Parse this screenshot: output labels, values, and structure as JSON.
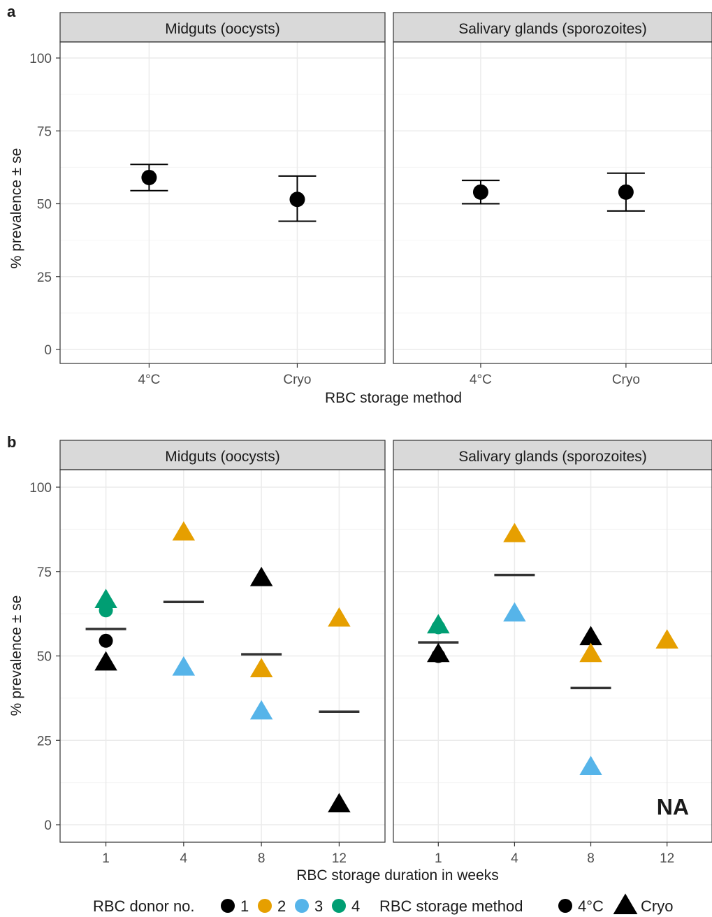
{
  "figure": {
    "panel_a_label": "a",
    "panel_b_label": "b"
  },
  "colors": {
    "donor_1": "#000000",
    "donor_2": "#E69F00",
    "donor_3": "#56B4E9",
    "donor_4": "#009E73",
    "strip_fill": "#D9D9D9",
    "grid_major": "#EBEBEB",
    "grid_minor": "#F5F5F5",
    "mean_bar": "#333333"
  },
  "chart_data": [
    {
      "id": "a",
      "type": "scatter",
      "panels": [
        "Midguts (oocysts)",
        "Salivary glands (sporozoites)"
      ],
      "categories": [
        "4°C",
        "Cryo"
      ],
      "xlabel": "RBC storage method",
      "ylabel": "% prevalence ± se",
      "ylim": [
        -5,
        105
      ],
      "yticks": [
        "0",
        "25",
        "50",
        "75",
        "100"
      ],
      "ytick_values": [
        0,
        25,
        50,
        75,
        100
      ],
      "grid": true,
      "series": [
        {
          "panel": "Midguts (oocysts)",
          "category": "4°C",
          "value": 59,
          "lower": 54.5,
          "upper": 63.5
        },
        {
          "panel": "Midguts (oocysts)",
          "category": "Cryo",
          "value": 51.5,
          "lower": 44,
          "upper": 59.5
        },
        {
          "panel": "Salivary glands (sporozoites)",
          "category": "4°C",
          "value": 54,
          "lower": 50,
          "upper": 58
        },
        {
          "panel": "Salivary glands (sporozoites)",
          "category": "Cryo",
          "value": 54,
          "lower": 47.5,
          "upper": 60.5
        }
      ]
    },
    {
      "id": "b",
      "type": "scatter",
      "panels": [
        "Midguts (oocysts)",
        "Salivary glands (sporozoites)"
      ],
      "categories": [
        "1",
        "4",
        "8",
        "12"
      ],
      "xlabel": "RBC storage duration in weeks",
      "ylabel": "% prevalence ± se",
      "ylim": [
        -5,
        105
      ],
      "yticks": [
        "0",
        "25",
        "50",
        "75",
        "100"
      ],
      "ytick_values": [
        0,
        25,
        50,
        75,
        100
      ],
      "grid": true,
      "points": [
        {
          "panel": 0,
          "week": "1",
          "donor": "4",
          "method": "Cryo",
          "value": 66.5
        },
        {
          "panel": 0,
          "week": "1",
          "donor": "4",
          "method": "4°C",
          "value": 63.5
        },
        {
          "panel": 0,
          "week": "1",
          "donor": "1",
          "method": "4°C",
          "value": 54.5
        },
        {
          "panel": 0,
          "week": "1",
          "donor": "1",
          "method": "Cryo",
          "value": 48
        },
        {
          "panel": 0,
          "week": "4",
          "donor": "2",
          "method": "Cryo",
          "value": 86.5
        },
        {
          "panel": 0,
          "week": "4",
          "donor": "3",
          "method": "Cryo",
          "value": 46.5
        },
        {
          "panel": 0,
          "week": "8",
          "donor": "1",
          "method": "Cryo",
          "value": 73
        },
        {
          "panel": 0,
          "week": "8",
          "donor": "2",
          "method": "Cryo",
          "value": 46
        },
        {
          "panel": 0,
          "week": "8",
          "donor": "3",
          "method": "Cryo",
          "value": 33.5
        },
        {
          "panel": 0,
          "week": "12",
          "donor": "2",
          "method": "Cryo",
          "value": 61
        },
        {
          "panel": 0,
          "week": "12",
          "donor": "1",
          "method": "Cryo",
          "value": 6
        },
        {
          "panel": 1,
          "week": "1",
          "donor": "4",
          "method": "Cryo",
          "value": 59
        },
        {
          "panel": 1,
          "week": "1",
          "donor": "4",
          "method": "4°C",
          "value": 58.5
        },
        {
          "panel": 1,
          "week": "1",
          "donor": "1",
          "method": "4°C",
          "value": 50
        },
        {
          "panel": 1,
          "week": "1",
          "donor": "1",
          "method": "Cryo",
          "value": 50.5
        },
        {
          "panel": 1,
          "week": "4",
          "donor": "2",
          "method": "Cryo",
          "value": 86
        },
        {
          "panel": 1,
          "week": "4",
          "donor": "3",
          "method": "Cryo",
          "value": 62.5
        },
        {
          "panel": 1,
          "week": "8",
          "donor": "1",
          "method": "Cryo",
          "value": 55.5
        },
        {
          "panel": 1,
          "week": "8",
          "donor": "2",
          "method": "Cryo",
          "value": 50.5
        },
        {
          "panel": 1,
          "week": "8",
          "donor": "3",
          "method": "Cryo",
          "value": 17
        },
        {
          "panel": 1,
          "week": "12",
          "donor": "2",
          "method": "Cryo",
          "value": 54.5
        }
      ],
      "means": [
        {
          "panel": 0,
          "week": "1",
          "value": 58
        },
        {
          "panel": 0,
          "week": "4",
          "value": 66
        },
        {
          "panel": 0,
          "week": "8",
          "value": 50.5
        },
        {
          "panel": 0,
          "week": "12",
          "value": 33.5
        },
        {
          "panel": 1,
          "week": "1",
          "value": 54
        },
        {
          "panel": 1,
          "week": "4",
          "value": 74
        },
        {
          "panel": 1,
          "week": "8",
          "value": 40.5
        }
      ],
      "annotation": {
        "panel": 1,
        "text": "NA"
      }
    }
  ],
  "legend": {
    "donor_title": "RBC donor no.",
    "donors": [
      {
        "label": "1",
        "color": "#000000"
      },
      {
        "label": "2",
        "color": "#E69F00"
      },
      {
        "label": "3",
        "color": "#56B4E9"
      },
      {
        "label": "4",
        "color": "#009E73"
      }
    ],
    "method_title": "RBC storage method",
    "methods": [
      {
        "label": "4°C",
        "shape": "circle"
      },
      {
        "label": "Cryo",
        "shape": "triangle"
      }
    ]
  }
}
